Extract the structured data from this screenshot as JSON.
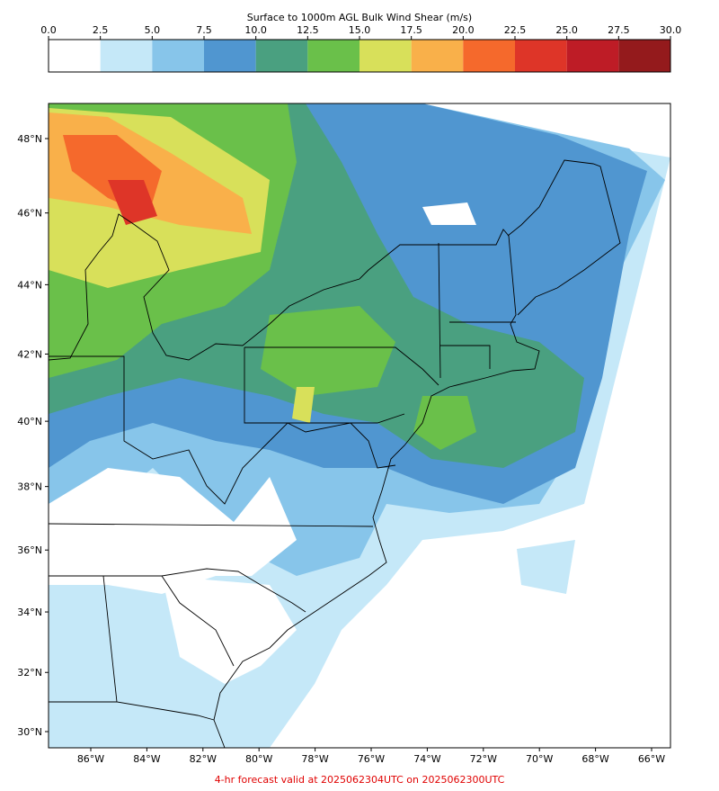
{
  "title": "Surface to 1000m AGL Bulk Wind Shear (m/s)",
  "colorbar": {
    "ticks": [
      {
        "value": 0,
        "label": "0.0"
      },
      2.5,
      {
        "value": 5,
        "label": "5.0"
      },
      7.5,
      {
        "value": 10,
        "label": "10.0"
      },
      12.5,
      {
        "value": 15,
        "label": "15.0"
      },
      17.5,
      {
        "value": 20,
        "label": "20.0"
      },
      22.5,
      {
        "value": 25,
        "label": "25.0"
      },
      27.5,
      {
        "value": 30,
        "label": "30.0"
      }
    ],
    "colors": [
      "#ffffff",
      "#c5e8f8",
      "#87c5ea",
      "#5096d0",
      "#4aa080",
      "#6ac04a",
      "#d8e05a",
      "#f9b04a",
      "#f5692c",
      "#de3528",
      "#be1c26",
      "#941a1c"
    ]
  },
  "map": {
    "lon_ticks": [
      {
        "value": -86,
        "label": "86°W"
      },
      {
        "value": -84,
        "label": "84°W"
      },
      {
        "value": -82,
        "label": "82°W"
      },
      {
        "value": -80,
        "label": "80°W"
      },
      {
        "value": -78,
        "label": "78°W"
      },
      {
        "value": -76,
        "label": "76°W"
      },
      {
        "value": -74,
        "label": "74°W"
      },
      {
        "value": -72,
        "label": "72°W"
      },
      {
        "value": -70,
        "label": "70°W"
      },
      {
        "value": -68,
        "label": "68°W"
      },
      {
        "value": -66,
        "label": "66°W"
      }
    ],
    "lat_ticks": [
      {
        "value": 30,
        "label": "30°N"
      },
      {
        "value": 32,
        "label": "32°N"
      },
      {
        "value": 34,
        "label": "34°N"
      },
      {
        "value": 36,
        "label": "36°N"
      },
      {
        "value": 38,
        "label": "38°N"
      },
      {
        "value": 40,
        "label": "40°N"
      },
      {
        "value": 42,
        "label": "42°N"
      },
      {
        "value": 44,
        "label": "44°N"
      },
      {
        "value": 46,
        "label": "46°N"
      },
      {
        "value": 48,
        "label": "48°N"
      }
    ]
  },
  "footer": "4-hr forecast valid at 2025062304UTC on 2025062300UTC"
}
